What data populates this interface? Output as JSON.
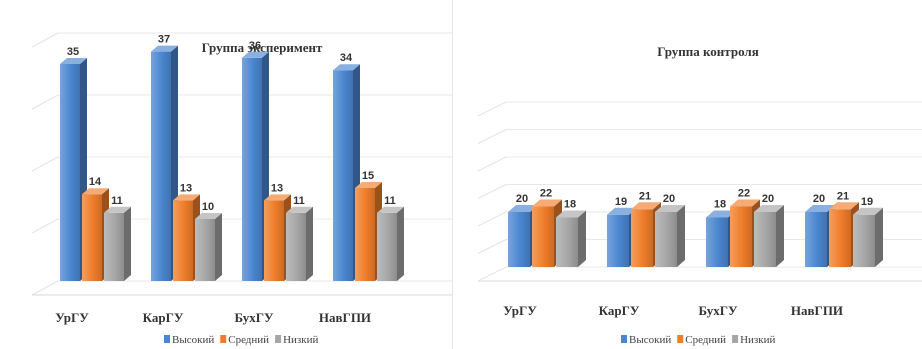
{
  "chart_data": [
    {
      "type": "bar",
      "title": "Группа эксперимент",
      "categories": [
        "УрГУ",
        "КарГУ",
        "БухГУ",
        "НавГПИ"
      ],
      "series": [
        {
          "name": "Высокий",
          "values": [
            35,
            37,
            36,
            34
          ],
          "color": "#4a86d0"
        },
        {
          "name": "Средний",
          "values": [
            14,
            13,
            13,
            15
          ],
          "color": "#ef7d2a"
        },
        {
          "name": "Низкий",
          "values": [
            11,
            10,
            11,
            11
          ],
          "color": "#a6a6a6"
        }
      ],
      "ylim": [
        0,
        60
      ],
      "grid": true,
      "legend": "bottom"
    },
    {
      "type": "bar",
      "title": "Группа контроля",
      "categories": [
        "УрГУ",
        "КарГУ",
        "БухГУ",
        "НавГПИ"
      ],
      "series": [
        {
          "name": "Высокий",
          "values": [
            20,
            19,
            18,
            20
          ],
          "color": "#4a86d0"
        },
        {
          "name": "Средний",
          "values": [
            22,
            21,
            22,
            21
          ],
          "color": "#ef7d2a"
        },
        {
          "name": "Низкий",
          "values": [
            18,
            20,
            20,
            19
          ],
          "color": "#a6a6a6"
        }
      ],
      "ylim": [
        0,
        60
      ],
      "grid": true,
      "legend": "bottom"
    }
  ]
}
